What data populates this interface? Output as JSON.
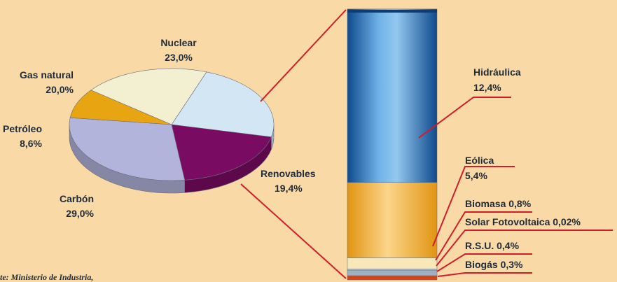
{
  "chart_data": [
    {
      "type": "pie",
      "slices": [
        {
          "name": "Nuclear",
          "value": 23.0,
          "label": "23,0%",
          "color": "#d2e6f4"
        },
        {
          "name": "Renovables",
          "value": 19.4,
          "label": "19,4%",
          "color": "#7a0b62"
        },
        {
          "name": "Carbón",
          "value": 29.0,
          "label": "29,0%",
          "color": "#b3b4dc"
        },
        {
          "name": "Petróleo",
          "value": 8.6,
          "label": "8,6%",
          "color": "#e8a512"
        },
        {
          "name": "Gas natural",
          "value": 20.0,
          "label": "20,0%",
          "color": "#f3f0d2"
        }
      ]
    },
    {
      "type": "bar",
      "stacked": true,
      "segments": [
        {
          "name": "Hidráulica",
          "value": 12.4,
          "label": "12,4%",
          "color": "#3f86c8"
        },
        {
          "name": "Eólica",
          "value": 5.4,
          "label": "5,4%",
          "color": "#f2b33a"
        },
        {
          "name": "Biomasa",
          "value": 0.8,
          "label": "0,8%",
          "color": "#f8e7b8"
        },
        {
          "name": "Solar Fotovoltaica",
          "value": 0.02,
          "label": "0,02%",
          "color": "#c7d8e4"
        },
        {
          "name": "R.S.U.",
          "value": 0.4,
          "label": "0,4%",
          "color": "#9fb2c4"
        },
        {
          "name": "Biogás",
          "value": 0.3,
          "label": "0,3%",
          "color": "#d8441c"
        }
      ]
    }
  ],
  "source_text": "te: Ministerio de Industria,",
  "colors": {
    "background": "#f9d9a6",
    "leader_line": "#d01c2b",
    "text": "#1f2a3a"
  }
}
